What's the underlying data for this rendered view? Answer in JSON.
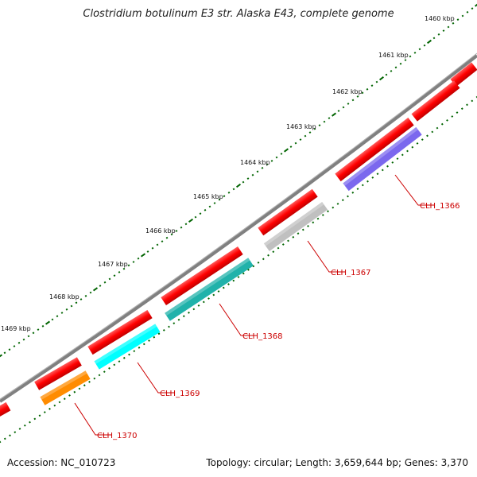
{
  "title": "Clostridium botulinum E3 str. Alaska E43, complete genome",
  "footer": {
    "accession": "Accession: NC_010723",
    "summary": "Topology: circular; Length: 3,659,644 bp; Genes: 3,370"
  },
  "scale_labels": [
    "1460 kbp",
    "1461 kbp",
    "1462 kbp",
    "1463 kbp",
    "1464 kbp",
    "1465 kbp",
    "1466 kbp",
    "1467 kbp",
    "1468 kbp",
    "1469 kbp"
  ],
  "genes": [
    {
      "label": "CLH_1366",
      "color": "#7b68ee"
    },
    {
      "label": "CLH_1367",
      "color": "#c0c0c0"
    },
    {
      "label": "CLH_1368",
      "color": "#20b2aa"
    },
    {
      "label": "CLH_1369",
      "color": "#00ffff"
    },
    {
      "label": "CLH_1370",
      "color": "#ff8c00"
    }
  ],
  "colors": {
    "backbone": "#808080",
    "cds": "#ff0000",
    "ticks": "#006400",
    "label": "#cc0000"
  }
}
